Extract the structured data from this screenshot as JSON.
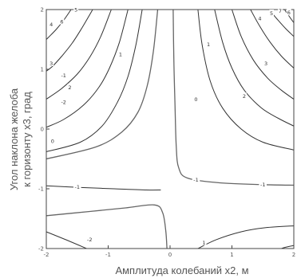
{
  "chart_data": {
    "type": "contour",
    "xlabel": "Амплитуда колебаний x2, м",
    "ylabel_line1": "Угол наклона желоба",
    "ylabel_line2": "к горизонту x3, град",
    "xlim": [
      -2,
      2
    ],
    "ylim": [
      -2,
      2
    ],
    "x_ticks": [
      {
        "value": -2,
        "label": "-2"
      },
      {
        "value": -1,
        "label": "-1"
      },
      {
        "value": 0,
        "label": "0"
      },
      {
        "value": 1,
        "label": "1"
      },
      {
        "value": 2,
        "label": "2"
      }
    ],
    "y_ticks": [
      {
        "value": -2,
        "label": "-2"
      },
      {
        "value": -1,
        "label": "-1"
      },
      {
        "value": 0,
        "label": "0"
      },
      {
        "value": 1,
        "label": "1"
      },
      {
        "value": 2,
        "label": "2"
      }
    ],
    "contours": [
      {
        "level": "6",
        "points": [
          [
            -1.6,
            2
          ],
          [
            -1.72,
            1.82
          ],
          [
            -1.83,
            1.68
          ],
          [
            -1.93,
            1.57
          ],
          [
            -2,
            1.5
          ]
        ],
        "label_at": [
          -1.75,
          1.8
        ]
      },
      {
        "level": "4",
        "points": [
          [
            -1.25,
            2
          ],
          [
            -1.42,
            1.7
          ],
          [
            -1.58,
            1.44
          ],
          [
            -1.75,
            1.22
          ],
          [
            -1.9,
            1.05
          ],
          [
            -2,
            0.97
          ]
        ],
        "label_at": [
          -1.92,
          1.75
        ]
      },
      {
        "level": "3",
        "points": [
          [
            -0.95,
            2
          ],
          [
            -1.12,
            1.55
          ],
          [
            -1.3,
            1.2
          ],
          [
            -1.5,
            0.92
          ],
          [
            -1.75,
            0.68
          ],
          [
            -2,
            0.5
          ]
        ],
        "label_at": [
          -1.92,
          1.1
        ]
      },
      {
        "level": "2",
        "points": [
          [
            -0.68,
            2
          ],
          [
            -0.82,
            1.45
          ],
          [
            -0.98,
            1.02
          ],
          [
            -1.15,
            0.7
          ],
          [
            -1.4,
            0.4
          ],
          [
            -1.72,
            0.16
          ],
          [
            -2,
            0.03
          ]
        ],
        "label_at": [
          -1.62,
          0.7
        ]
      },
      {
        "level": "1",
        "points": [
          [
            -0.45,
            2
          ],
          [
            -0.55,
            1.42
          ],
          [
            -0.68,
            0.88
          ],
          [
            -0.85,
            0.45
          ],
          [
            -1.1,
            0.05
          ],
          [
            -1.45,
            -0.22
          ],
          [
            -2,
            -0.38
          ]
        ],
        "label_at": [
          -0.8,
          1.25
        ]
      },
      {
        "level": "0",
        "points": [
          [
            -0.2,
            2
          ],
          [
            -0.27,
            1.3
          ],
          [
            -0.37,
            0.72
          ],
          [
            -0.52,
            0.28
          ],
          [
            -0.78,
            -0.05
          ],
          [
            -1.2,
            -0.3
          ],
          [
            -2,
            -0.5
          ]
        ],
        "label_at": [
          -1.9,
          -0.2
        ]
      },
      {
        "level": "-1",
        "points": [
          [
            -2,
            -0.95
          ],
          [
            -1.4,
            -0.98
          ],
          [
            -0.9,
            -1.0
          ],
          [
            -0.38,
            -1.02
          ],
          [
            -0.15,
            -1.02
          ]
        ],
        "label_at": [
          -1.5,
          -0.97
        ]
      },
      {
        "level": "0",
        "points": [
          [
            -2,
            -1.45
          ],
          [
            -1.3,
            -1.38
          ],
          [
            -0.72,
            -1.32
          ],
          [
            -0.25,
            -1.27
          ],
          [
            -0.12,
            -1.4
          ],
          [
            -0.07,
            -1.7
          ],
          [
            -0.05,
            -2
          ]
        ],
        "label_at": null
      },
      {
        "level": "-2",
        "points": [
          [
            -2,
            -1.72
          ],
          [
            -1.62,
            -1.88
          ],
          [
            -1.35,
            -2
          ]
        ],
        "label_at": [
          -1.3,
          -1.85
        ]
      },
      {
        "level": "0",
        "points": [
          [
            0.05,
            2
          ],
          [
            0.06,
            1.2
          ],
          [
            0.08,
            0.4
          ],
          [
            0.1,
            -0.3
          ],
          [
            0.14,
            -0.65
          ],
          [
            0.28,
            -0.82
          ],
          [
            0.8,
            -0.9
          ],
          [
            1.5,
            -0.93
          ],
          [
            2,
            -0.94
          ]
        ],
        "label_at": [
          0.42,
          0.5
        ]
      },
      {
        "level": "1",
        "points": [
          [
            0.45,
            2
          ],
          [
            0.52,
            1.4
          ],
          [
            0.65,
            0.8
          ],
          [
            0.85,
            0.35
          ],
          [
            1.15,
            0.0
          ],
          [
            1.5,
            -0.22
          ],
          [
            2,
            -0.35
          ]
        ],
        "label_at": [
          0.62,
          1.42
        ]
      },
      {
        "level": "2",
        "points": [
          [
            0.72,
            2
          ],
          [
            0.85,
            1.45
          ],
          [
            1.0,
            1.02
          ],
          [
            1.2,
            0.65
          ],
          [
            1.48,
            0.35
          ],
          [
            1.75,
            0.18
          ],
          [
            2,
            0.05
          ]
        ],
        "label_at": [
          1.2,
          0.55
        ]
      },
      {
        "level": "3",
        "points": [
          [
            1.0,
            2
          ],
          [
            1.15,
            1.55
          ],
          [
            1.35,
            1.15
          ],
          [
            1.58,
            0.85
          ],
          [
            1.8,
            0.65
          ],
          [
            2,
            0.5
          ]
        ],
        "label_at": [
          1.55,
          1.1
        ]
      },
      {
        "level": "4",
        "points": [
          [
            1.3,
            2
          ],
          [
            1.45,
            1.72
          ],
          [
            1.62,
            1.45
          ],
          [
            1.8,
            1.22
          ],
          [
            2,
            1.02
          ]
        ],
        "label_at": [
          1.45,
          1.85
        ]
      },
      {
        "level": "5",
        "points": [
          [
            1.6,
            2
          ],
          [
            1.73,
            1.84
          ],
          [
            1.87,
            1.68
          ],
          [
            2,
            1.55
          ]
        ],
        "label_at": [
          1.64,
          1.94
        ]
      },
      {
        "level": "6",
        "points": [
          [
            1.85,
            2
          ],
          [
            1.93,
            1.88
          ],
          [
            2,
            1.78
          ]
        ],
        "label_at": [
          1.92,
          1.95
        ]
      },
      {
        "level": "1",
        "points": [
          [
            0.45,
            -2
          ],
          [
            0.75,
            -1.85
          ],
          [
            1.15,
            -1.72
          ],
          [
            1.55,
            -1.65
          ],
          [
            2,
            -1.62
          ]
        ],
        "label_at": [
          0.55,
          -1.9
        ]
      },
      {
        "level": "-1",
        "points": [
          [
            1.8,
            -2
          ],
          [
            1.86,
            -1.98
          ],
          [
            2,
            -1.95
          ]
        ],
        "label_at": null
      }
    ],
    "extra_labels": [
      {
        "text": "-1",
        "at": [
          0.42,
          -0.85
        ]
      },
      {
        "text": "-1",
        "at": [
          1.5,
          -0.93
        ]
      },
      {
        "text": "-1",
        "at": [
          -1.72,
          0.9
        ]
      },
      {
        "text": "-2",
        "at": [
          -1.72,
          0.45
        ]
      },
      {
        "text": "5",
        "at": [
          -1.52,
          2.0
        ]
      },
      {
        "text": "7",
        "at": [
          1.78,
          1.98
        ]
      }
    ]
  }
}
